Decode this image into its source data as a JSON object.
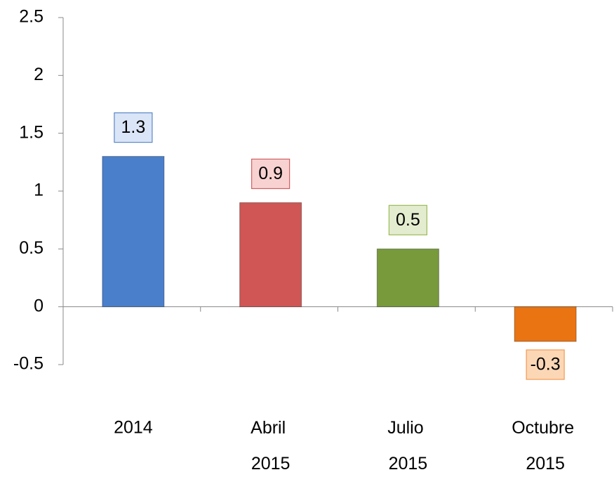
{
  "chart_data": {
    "type": "bar",
    "categories": [
      "2014",
      "Abril 2015",
      "Julio 2015",
      "Octubre 2015"
    ],
    "values": [
      1.3,
      0.9,
      0.5,
      -0.3
    ],
    "colors": [
      "#4a7fcb",
      "#cf5655",
      "#789a3a",
      "#ea7412"
    ],
    "label_fills": [
      "#dae5f7",
      "#f8d2d1",
      "#e4eccf",
      "#fcd7b6"
    ],
    "label_borders": [
      "#5a88c8",
      "#d06060",
      "#9bbb59",
      "#f39a50"
    ],
    "ylim": [
      -0.5,
      2.5
    ],
    "yticks": [
      2.5,
      2,
      1.5,
      1,
      0.5,
      0,
      -0.5
    ],
    "grid": false
  }
}
